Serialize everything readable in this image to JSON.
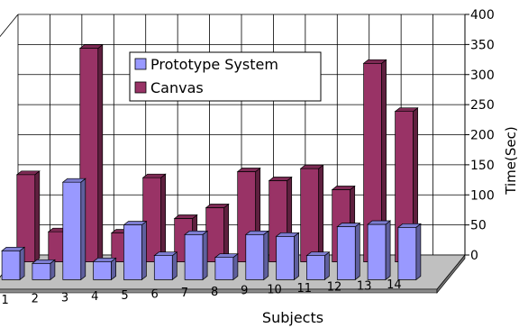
{
  "chart_data": {
    "type": "bar",
    "subtype": "3d-clustered-column",
    "categories": [
      "1",
      "2",
      "3",
      "4",
      "5",
      "6",
      "7",
      "8",
      "9",
      "10",
      "11",
      "12",
      "13",
      "14"
    ],
    "series": [
      {
        "name": "Prototype System",
        "values": [
          48,
          27,
          162,
          30,
          91,
          40,
          75,
          37,
          75,
          72,
          40,
          88,
          92,
          87
        ],
        "color": "#9999ff"
      },
      {
        "name": "Canvas",
        "values": [
          145,
          50,
          355,
          48,
          140,
          72,
          90,
          150,
          135,
          155,
          120,
          330,
          250,
          0
        ],
        "color": "#993366"
      }
    ],
    "xlabel": "Subjects",
    "ylabel": "Time(Sec)",
    "ylim": [
      0,
      400
    ],
    "yticks": [
      "0",
      "50",
      "100",
      "150",
      "200",
      "250",
      "300",
      "350",
      "400"
    ],
    "grid": true,
    "legend": "top-center",
    "back_wall_color": "#ffffff",
    "floor_color": "#c0c0c0"
  }
}
